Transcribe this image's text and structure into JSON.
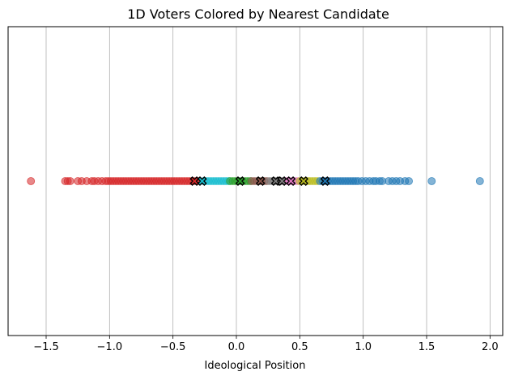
{
  "chart_data": {
    "type": "scatter",
    "title": "1D Voters Colored by Nearest Candidate",
    "xlabel": "Ideological Position",
    "ylabel": "",
    "xlim": [
      -1.8,
      2.1
    ],
    "xticks": [
      -1.5,
      -1.0,
      -0.5,
      0.0,
      0.5,
      1.0,
      1.5,
      2.0
    ],
    "xtick_labels": [
      "−1.5",
      "−1.0",
      "−0.5",
      "0.0",
      "0.5",
      "1.0",
      "1.5",
      "2.0"
    ],
    "grid": "x",
    "series": [
      {
        "color": "#d62728",
        "x": [
          -1.62,
          -1.35,
          -1.33,
          -1.31,
          -1.25,
          -1.22,
          -1.18,
          -1.14,
          -1.12,
          -1.09,
          -1.06,
          -1.03,
          -1.01,
          -0.99,
          -0.97,
          -0.95,
          -0.93,
          -0.91,
          -0.89,
          -0.87,
          -0.85,
          -0.83,
          -0.81,
          -0.79,
          -0.77,
          -0.75,
          -0.73,
          -0.71,
          -0.69,
          -0.67,
          -0.65,
          -0.63,
          -0.61,
          -0.59,
          -0.57,
          -0.55,
          -0.53,
          -0.51,
          -0.49,
          -0.47,
          -0.45,
          -0.43,
          -0.41,
          -0.39,
          -0.37,
          -0.35,
          -0.33,
          -0.31,
          -0.29
        ]
      },
      {
        "color": "#17becf",
        "x": [
          -0.26,
          -0.24,
          -0.22,
          -0.2,
          -0.18,
          -0.16,
          -0.14,
          -0.12,
          -0.1,
          -0.08,
          -0.06
        ]
      },
      {
        "color": "#2ca02c",
        "x": [
          -0.05,
          -0.03,
          -0.01,
          0.01,
          0.03,
          0.05,
          0.07,
          0.09,
          0.11
        ]
      },
      {
        "color": "#8c564b",
        "x": [
          0.12,
          0.14,
          0.16,
          0.18,
          0.2,
          0.22,
          0.24
        ]
      },
      {
        "color": "#7f7f7f",
        "x": [
          0.26,
          0.28,
          0.3,
          0.32,
          0.34,
          0.36
        ]
      },
      {
        "color": "#e377c2",
        "x": [
          0.38,
          0.4,
          0.42,
          0.44,
          0.46,
          0.48
        ]
      },
      {
        "color": "#bcbd22",
        "x": [
          0.5,
          0.52,
          0.54,
          0.56,
          0.58,
          0.6,
          0.62,
          0.64
        ]
      },
      {
        "color": "#1f77b4",
        "x": [
          0.66,
          0.68,
          0.7,
          0.72,
          0.74,
          0.76,
          0.78,
          0.8,
          0.82,
          0.84,
          0.86,
          0.88,
          0.9,
          0.92,
          0.94,
          0.96,
          0.99,
          1.02,
          1.05,
          1.08,
          1.1,
          1.13,
          1.15,
          1.2,
          1.23,
          1.26,
          1.29,
          1.33,
          1.36,
          1.54,
          1.92
        ]
      }
    ],
    "candidates": [
      {
        "x": -0.33,
        "color": "#d62728"
      },
      {
        "x": -0.27,
        "color": "#17becf"
      },
      {
        "x": 0.03,
        "color": "#2ca02c"
      },
      {
        "x": 0.19,
        "color": "#8c564b"
      },
      {
        "x": 0.31,
        "color": "#7f7f7f"
      },
      {
        "x": 0.36,
        "color": "#7f7f7f"
      },
      {
        "x": 0.43,
        "color": "#e377c2"
      },
      {
        "x": 0.53,
        "color": "#bcbd22"
      },
      {
        "x": 0.7,
        "color": "#1f77b4"
      }
    ]
  }
}
